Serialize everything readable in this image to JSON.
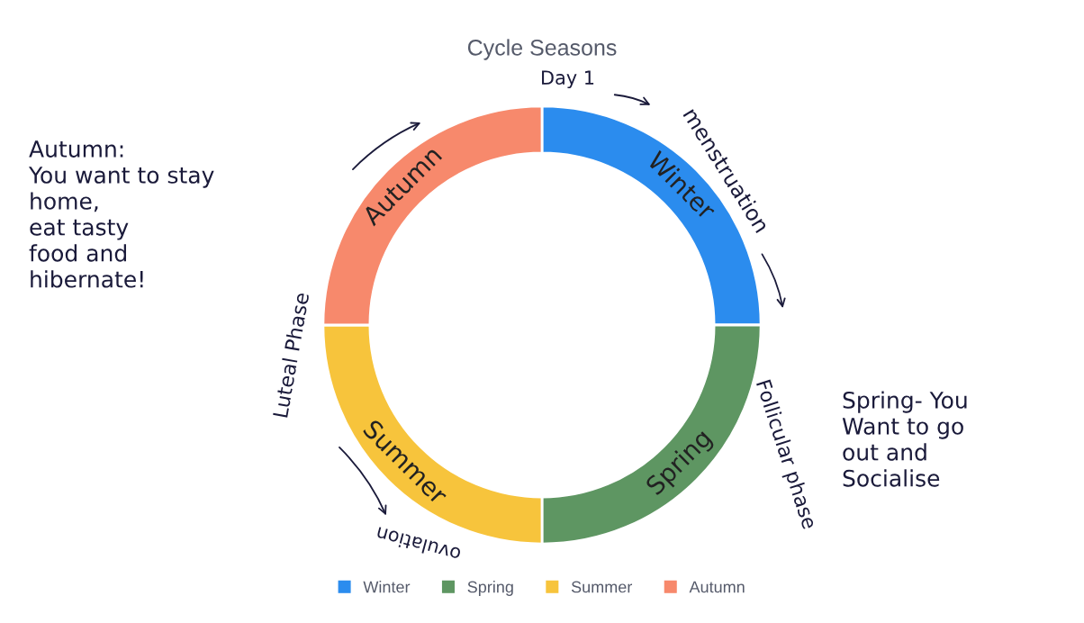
{
  "chart_data": {
    "type": "donut",
    "title": "Cycle Seasons",
    "categories": [
      "Winter",
      "Spring",
      "Summer",
      "Autumn"
    ],
    "values": [
      25,
      25,
      25,
      25
    ],
    "colors": [
      "#2b8cee",
      "#5e9662",
      "#f7c43c",
      "#f7896c"
    ],
    "legend": "bottom",
    "annotations": [
      "Day 1",
      "menstruation",
      "Follicular phase",
      "ovulation",
      "Luteal Phase",
      "Autumn:\nYou want to stay\nhome,\neat tasty\nfood and\nhibernate!",
      "Spring- You\nWant to go\nout and\nSocialise"
    ]
  }
}
